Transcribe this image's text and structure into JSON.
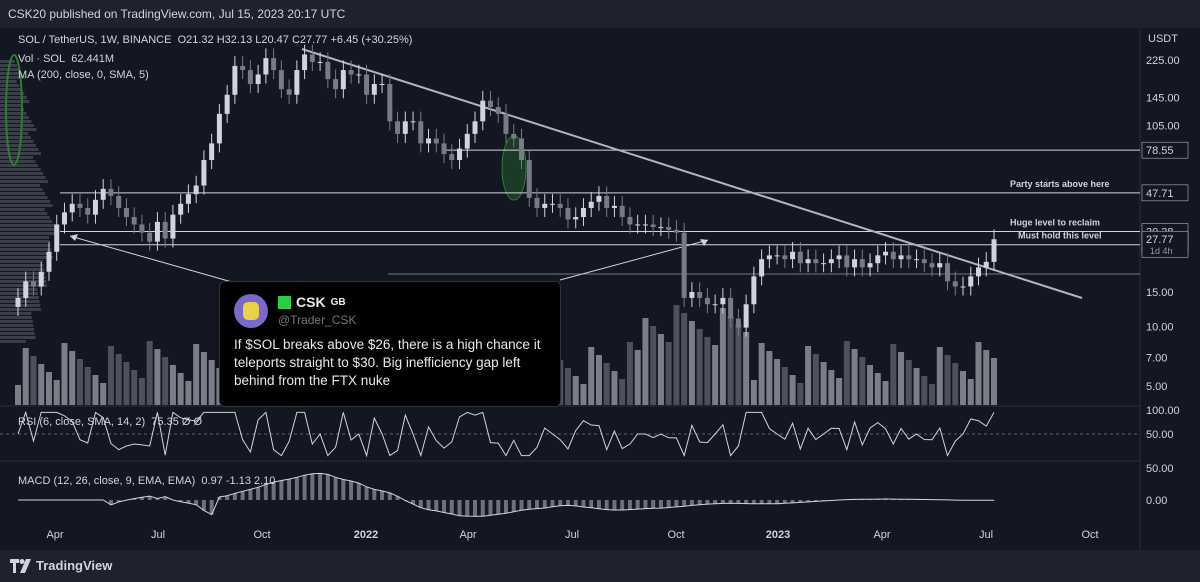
{
  "header": {
    "published": "CSK20 published on TradingView.com, Jul 15, 2023 20:17 UTC"
  },
  "footer": {
    "brand": "TradingView"
  },
  "legend": {
    "symbol": "SOL / TetherUS, 1W, BINANCE",
    "ohlc": "O21.32 H32.13 L20.47 C27.77 +6.45 (+30.25%)",
    "vol_label": "Vol · SOL",
    "vol_value": "62.441M",
    "ma": "MA (200, close, 0, SMA, 5)",
    "rsi": "RSI (6, close, SMA, 14, 2)",
    "rsi_values": "75.35  Ø  Ø",
    "macd": "MACD (12, 26, close, 9, EMA, EMA)",
    "macd_values": "0.97  -1.13  2.10"
  },
  "tweet": {
    "name": "CSK",
    "flag": "GB",
    "handle": "@Trader_CSK",
    "text": "If $SOL breaks above $26, there is a high chance it teleports straight to $30. Big inefficiency gap left behind from the FTX nuke"
  },
  "colors": {
    "background": "#131722",
    "up": "#d1d4dc",
    "down": "#787b86",
    "line": "#b2b5be",
    "green_marker": "#2e7d32"
  },
  "chart_data": {
    "type": "candlestick",
    "currency": "USDT",
    "price_ticks": [
      "225.00",
      "145.00",
      "105.00",
      "15.00",
      "10.00",
      "7.00",
      "5.00"
    ],
    "x_labels": [
      "Apr",
      "Jul",
      "Oct",
      "2022",
      "Apr",
      "Jul",
      "Oct",
      "2023",
      "Apr",
      "Jul",
      "Oct"
    ],
    "levels": [
      {
        "value": 78.55,
        "label": ""
      },
      {
        "value": 47.71,
        "label": "Party starts above here"
      },
      {
        "value": 30.38,
        "label": "Huge level to reclaim"
      },
      {
        "value": 26.05,
        "label": "Must hold this level"
      }
    ],
    "current_price": {
      "value": "27.77",
      "countdown": "1d 4h"
    },
    "last_candle": {
      "open": 21.32,
      "high": 32.13,
      "low": 20.47,
      "close": 27.77
    },
    "closes": [
      14,
      17,
      16,
      19,
      24,
      33,
      38,
      42,
      40,
      37,
      44,
      50,
      46,
      40,
      36,
      33,
      30,
      27,
      34,
      28,
      37,
      42,
      47,
      52,
      70,
      85,
      120,
      150,
      210,
      200,
      170,
      190,
      230,
      200,
      160,
      150,
      200,
      240,
      220,
      220,
      180,
      160,
      200,
      190,
      190,
      150,
      170,
      170,
      110,
      95,
      110,
      110,
      85,
      90,
      85,
      75,
      70,
      80,
      95,
      110,
      140,
      130,
      120,
      95,
      90,
      70,
      45,
      40,
      42,
      42,
      40,
      35,
      36,
      40,
      43,
      46,
      40,
      41,
      36,
      33,
      33,
      33,
      32,
      32,
      31,
      30,
      14,
      15,
      14,
      13,
      13,
      14,
      11,
      9.9,
      13,
      18,
      22,
      23,
      23,
      22,
      24,
      21,
      22,
      21,
      21,
      22,
      23,
      20,
      22,
      20,
      21,
      23,
      24,
      22,
      23,
      22,
      22,
      21,
      20,
      21,
      17,
      16,
      16,
      18,
      20,
      21.32,
      27.77
    ],
    "rsi": {
      "ticks": [
        "100.00",
        "50.00"
      ],
      "value": "75.35"
    },
    "macd": {
      "ticks": [
        "50.00",
        "0.00"
      ],
      "macd": "0.97",
      "signal": "-1.13",
      "histogram": "2.10"
    }
  }
}
